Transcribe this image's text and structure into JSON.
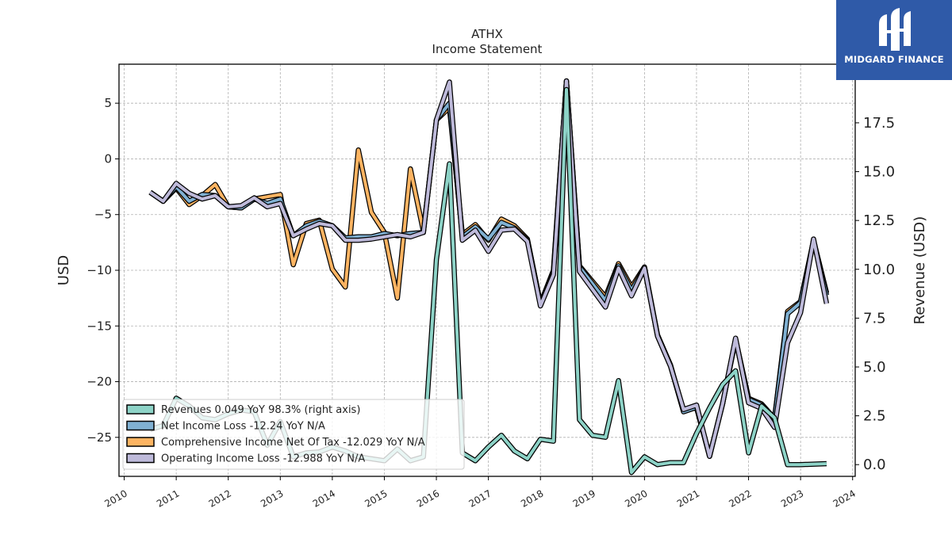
{
  "brand": {
    "name": "MIDGARD FINANCE",
    "logo_icon": "midgard-finance-logo-icon",
    "background_color": "#2f5aa8"
  },
  "chart_data": {
    "type": "line",
    "title": "ATHX",
    "subtitle": "Income Statement",
    "ylabel": "USD",
    "y2label": "Revenue (USD)",
    "ylim": [
      -28.5,
      8.5
    ],
    "y2lim": [
      -0.6,
      20.5
    ],
    "xlim": [
      2009.9,
      2024.05
    ],
    "xticks": [
      2010,
      2011,
      2012,
      2013,
      2014,
      2015,
      2016,
      2017,
      2018,
      2019,
      2020,
      2021,
      2022,
      2023,
      2024
    ],
    "yticks": [
      5,
      0,
      -5,
      -10,
      -15,
      -20,
      -25
    ],
    "y2ticks": [
      17.5,
      15.0,
      12.5,
      10.0,
      7.5,
      5.0,
      2.5,
      0.0
    ],
    "grid": true,
    "legend_position": "lower-left",
    "series": [
      {
        "name": "Revenues  0.049 YoY 98.3% (right axis)",
        "axis": "right",
        "color": "#8dd3c7",
        "x": [
          2010.5,
          2010.75,
          2011.0,
          2011.25,
          2011.5,
          2011.75,
          2012.0,
          2012.25,
          2012.5,
          2012.75,
          2013.0,
          2013.25,
          2013.5,
          2013.75,
          2014.0,
          2014.25,
          2014.5,
          2014.75,
          2015.0,
          2015.25,
          2015.5,
          2015.75,
          2016.0,
          2016.25,
          2016.5,
          2016.75,
          2017.0,
          2017.25,
          2017.5,
          2017.75,
          2018.0,
          2018.25,
          2018.5,
          2018.75,
          2019.0,
          2019.25,
          2019.5,
          2019.75,
          2020.0,
          2020.25,
          2020.5,
          2020.75,
          2021.0,
          2021.25,
          2021.5,
          2021.75,
          2022.0,
          2022.25,
          2022.5,
          2022.75,
          2023.0,
          2023.5
        ],
        "values": [
          1.8,
          2.0,
          3.4,
          3.0,
          2.4,
          2.3,
          2.6,
          2.8,
          2.7,
          1.0,
          2.2,
          0.4,
          0.6,
          0.65,
          0.9,
          0.7,
          0.4,
          0.3,
          0.2,
          0.8,
          0.2,
          0.4,
          10.5,
          15.4,
          0.6,
          0.2,
          0.9,
          1.5,
          0.7,
          0.3,
          1.3,
          1.2,
          19.2,
          2.3,
          1.5,
          1.4,
          4.3,
          -0.4,
          0.4,
          0.0,
          0.1,
          0.1,
          1.6,
          2.9,
          4.1,
          4.8,
          0.6,
          3.0,
          2.4,
          0.0,
          0.0,
          0.049
        ]
      },
      {
        "name": "Net Income Loss  -12.24 YoY N/A",
        "axis": "left",
        "color": "#80b1d3",
        "x": [
          2010.5,
          2010.75,
          2011.0,
          2011.25,
          2011.5,
          2011.75,
          2012.0,
          2012.25,
          2012.5,
          2012.75,
          2013.0,
          2013.25,
          2013.5,
          2013.75,
          2014.0,
          2014.25,
          2014.5,
          2014.75,
          2015.0,
          2015.25,
          2015.5,
          2015.75,
          2016.0,
          2016.25,
          2016.5,
          2016.75,
          2017.0,
          2017.25,
          2017.5,
          2017.75,
          2018.0,
          2018.25,
          2018.5,
          2018.75,
          2019.0,
          2019.25,
          2019.5,
          2019.75,
          2020.0,
          2020.25,
          2020.5,
          2020.75,
          2021.0,
          2021.25,
          2021.5,
          2021.75,
          2022.0,
          2022.25,
          2022.5,
          2022.75,
          2023.0,
          2023.25,
          2023.5
        ],
        "values": [
          -3.0,
          -3.8,
          -2.5,
          -3.8,
          -3.2,
          -3.3,
          -4.3,
          -4.4,
          -3.6,
          -4.0,
          -3.6,
          -6.9,
          -6.0,
          -5.6,
          -6.0,
          -7.1,
          -7.0,
          -7.0,
          -6.7,
          -6.9,
          -6.7,
          -6.6,
          3.5,
          5.0,
          -7.0,
          -6.1,
          -7.2,
          -5.7,
          -6.2,
          -7.3,
          -13.0,
          -10.2,
          7.0,
          -9.7,
          -11.2,
          -12.7,
          -9.6,
          -11.8,
          -9.8,
          -15.9,
          -18.6,
          -22.7,
          -22.3,
          -26.7,
          -22.0,
          -16.2,
          -21.6,
          -22.1,
          -23.4,
          -13.9,
          -12.9,
          -7.4,
          -12.24
        ]
      },
      {
        "name": "Comprehensive Income Net Of Tax  -12.029 YoY N/A",
        "axis": "left",
        "color": "#fdb462",
        "x": [
          2010.5,
          2010.75,
          2011.0,
          2011.25,
          2011.5,
          2011.75,
          2012.0,
          2012.25,
          2012.5,
          2012.75,
          2013.0,
          2013.25,
          2013.5,
          2013.75,
          2014.0,
          2014.25,
          2014.5,
          2014.75,
          2015.0,
          2015.25,
          2015.5,
          2015.75,
          2016.0,
          2016.25,
          2016.5,
          2016.75,
          2017.0,
          2017.25,
          2017.5,
          2017.75,
          2018.0,
          2018.25,
          2018.5,
          2018.75,
          2019.0,
          2019.25,
          2019.5,
          2019.75,
          2020.0,
          2020.25,
          2020.5,
          2020.75,
          2021.0,
          2021.25,
          2021.5,
          2021.75,
          2022.0,
          2022.25,
          2022.5,
          2022.75,
          2023.0,
          2023.25,
          2023.5
        ],
        "values": [
          -3.0,
          -3.8,
          -2.6,
          -4.1,
          -3.3,
          -2.3,
          -4.3,
          -4.4,
          -3.6,
          -3.4,
          -3.2,
          -9.5,
          -5.8,
          -5.5,
          -9.9,
          -11.5,
          0.8,
          -4.8,
          -6.6,
          -12.5,
          -0.9,
          -6.5,
          3.5,
          4.6,
          -6.8,
          -5.9,
          -7.3,
          -5.4,
          -6.0,
          -7.2,
          -13.0,
          -10.0,
          7.0,
          -9.6,
          -11.0,
          -12.4,
          -9.4,
          -11.5,
          -9.7,
          -15.8,
          -18.5,
          -22.6,
          -22.3,
          -26.7,
          -22.0,
          -16.2,
          -21.5,
          -22.0,
          -23.3,
          -13.7,
          -12.8,
          -7.3,
          -12.029
        ]
      },
      {
        "name": "Operating Income Loss  -12.988 YoY N/A",
        "axis": "left",
        "color": "#bebada",
        "x": [
          2010.5,
          2010.75,
          2011.0,
          2011.25,
          2011.5,
          2011.75,
          2012.0,
          2012.25,
          2012.5,
          2012.75,
          2013.0,
          2013.25,
          2013.5,
          2013.75,
          2014.0,
          2014.25,
          2014.5,
          2014.75,
          2015.0,
          2015.25,
          2015.5,
          2015.75,
          2016.0,
          2016.25,
          2016.5,
          2016.75,
          2017.0,
          2017.25,
          2017.5,
          2017.75,
          2018.0,
          2018.25,
          2018.5,
          2018.75,
          2019.0,
          2019.25,
          2019.5,
          2019.75,
          2020.0,
          2020.25,
          2020.5,
          2020.75,
          2021.0,
          2021.25,
          2021.5,
          2021.75,
          2022.0,
          2022.25,
          2022.5,
          2022.75,
          2023.0,
          2023.25,
          2023.5
        ],
        "values": [
          -3.0,
          -3.8,
          -2.2,
          -3.1,
          -3.6,
          -3.3,
          -4.3,
          -4.2,
          -3.5,
          -4.3,
          -4.0,
          -6.9,
          -6.3,
          -5.8,
          -6.0,
          -7.3,
          -7.3,
          -7.2,
          -7.0,
          -6.8,
          -7.0,
          -6.6,
          3.5,
          6.9,
          -7.3,
          -6.4,
          -8.3,
          -6.4,
          -6.3,
          -7.4,
          -13.2,
          -10.4,
          7.0,
          -10.1,
          -11.7,
          -13.3,
          -9.8,
          -12.3,
          -9.8,
          -15.9,
          -18.6,
          -22.5,
          -22.1,
          -26.7,
          -22.0,
          -16.1,
          -21.9,
          -22.4,
          -24.1,
          -16.5,
          -13.8,
          -7.2,
          -12.988
        ]
      }
    ]
  }
}
